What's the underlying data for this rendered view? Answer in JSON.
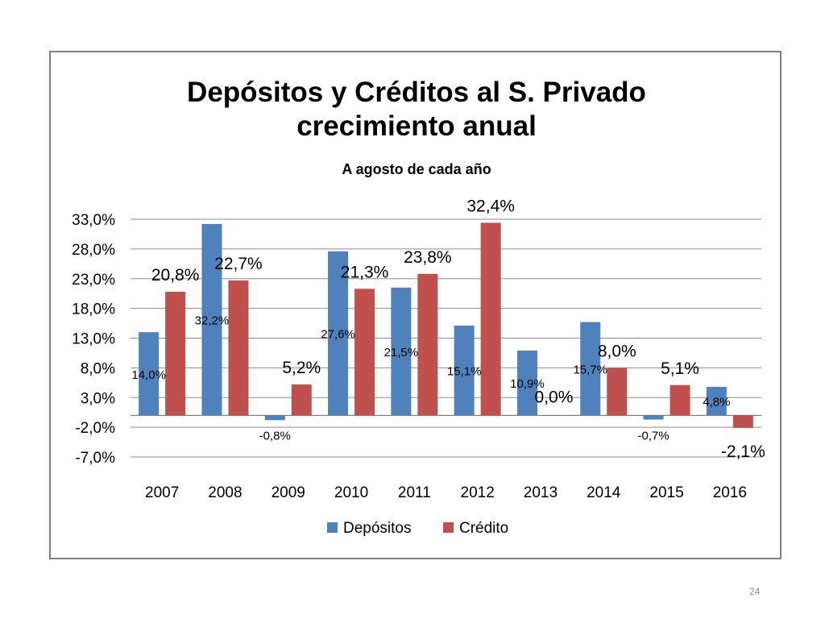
{
  "slide": {
    "page_number": "24"
  },
  "chart_data": {
    "type": "bar",
    "title_line1": "Depósitos y Créditos al S. Privado",
    "title_line2": "crecimiento anual",
    "subtitle": "A agosto de cada año",
    "categories": [
      "2007",
      "2008",
      "2009",
      "2010",
      "2011",
      "2012",
      "2013",
      "2014",
      "2015",
      "2016"
    ],
    "y_ticks": [
      "33,0%",
      "28,0%",
      "23,0%",
      "18,0%",
      "13,0%",
      "8,0%",
      "3,0%",
      "-2,0%",
      "-7,0%"
    ],
    "ylim": [
      -7,
      33
    ],
    "grid": true,
    "legend_position": "bottom",
    "series": [
      {
        "name": "Depósitos",
        "color": "#4f81bd",
        "values": [
          14.0,
          32.2,
          -0.8,
          27.6,
          21.5,
          15.1,
          10.9,
          15.7,
          -0.7,
          4.8
        ],
        "labels": [
          "14,0%",
          "32,2%",
          "-0,8%",
          "27,6%",
          "21,5%",
          "15,1%",
          "10,9%",
          "15,7%",
          "-0,7%",
          "4,8%"
        ]
      },
      {
        "name": "Crédito",
        "color": "#c0504d",
        "values": [
          20.8,
          22.7,
          5.2,
          21.3,
          23.8,
          32.4,
          0.0,
          8.0,
          5.1,
          -2.1
        ],
        "labels": [
          "20,8%",
          "22,7%",
          "5,2%",
          "21,3%",
          "23,8%",
          "32,4%",
          "0,0%",
          "8,0%",
          "5,1%",
          "-2,1%"
        ]
      }
    ]
  }
}
